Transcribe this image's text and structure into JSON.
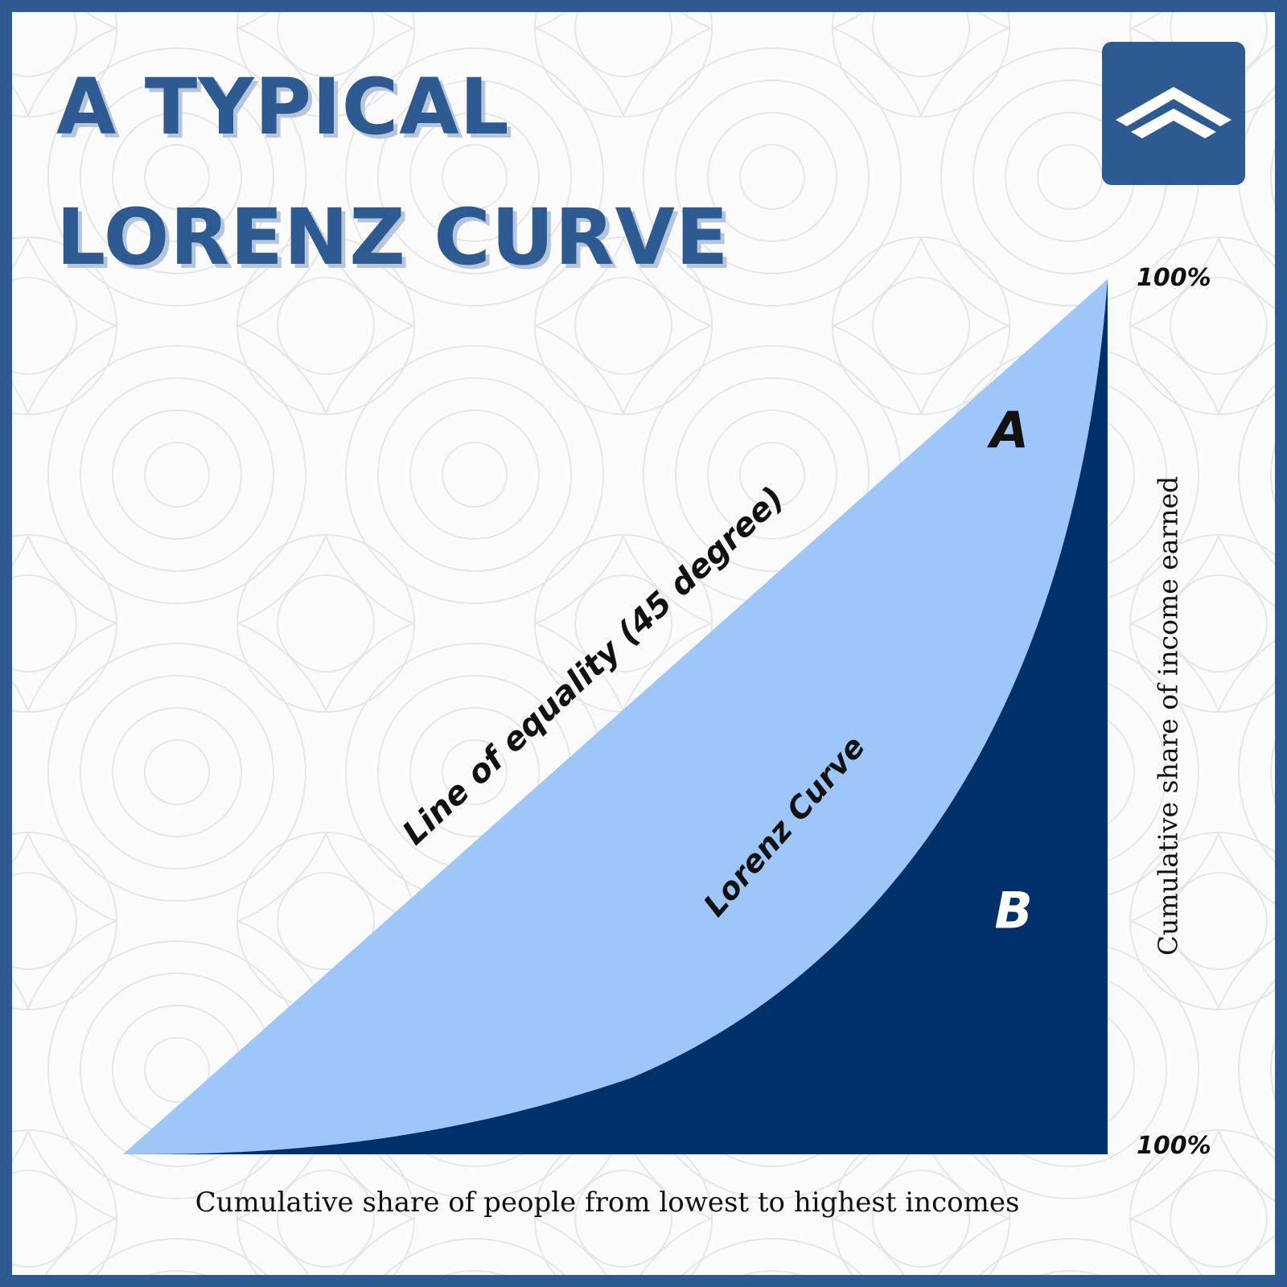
{
  "header": {
    "title_line1": "A TYPICAL",
    "title_line2": "LORENZ CURVE"
  },
  "logo": {
    "icon": "double-chevron-up-icon",
    "background_color": "#2e5a92"
  },
  "diagram": {
    "line_of_equality_label": "Line of equality (45 degree)",
    "lorenz_curve_label": "Lorenz Curve",
    "region_a_label": "A",
    "region_b_label": "B",
    "y_axis_label": "Cumulative share of income earned",
    "x_axis_label": "Cumulative share of people from lowest to highest incomes",
    "y_top_label": "100%",
    "x_right_label": "100%",
    "colors": {
      "area_a": "#9fc6f8",
      "area_b": "#00306a",
      "frame": "#2e5a92"
    }
  }
}
